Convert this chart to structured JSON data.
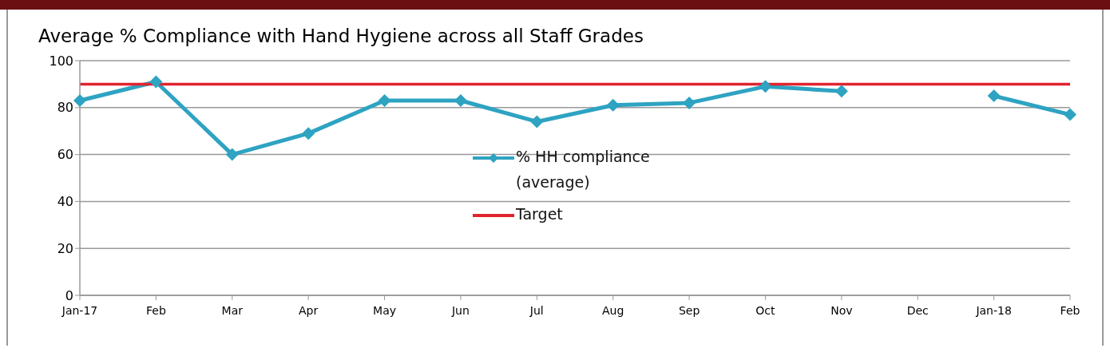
{
  "chart_data": {
    "type": "line",
    "title": "Average % Compliance with Hand Hygiene across all Staff Grades",
    "categories": [
      "Jan-17",
      "Feb",
      "Mar",
      "Apr",
      "May",
      "Jun",
      "Jul",
      "Aug",
      "Sep",
      "Oct",
      "Nov",
      "Dec",
      "Jan-18",
      "Feb"
    ],
    "series": [
      {
        "name": "% HH compliance (average)",
        "color": "#2ea3c2",
        "marker": "diamond",
        "values": [
          83,
          91,
          60,
          69,
          83,
          83,
          74,
          81,
          82,
          89,
          87,
          null,
          85,
          77
        ]
      },
      {
        "name": "Target",
        "color": "#e0242f",
        "marker": "none",
        "values": [
          90,
          90,
          90,
          90,
          90,
          90,
          90,
          90,
          90,
          90,
          90,
          90,
          90,
          90
        ]
      }
    ],
    "ylim": [
      0,
      100
    ],
    "yticks": [
      0,
      20,
      40,
      60,
      80,
      100
    ],
    "grid": "y",
    "legend": "center"
  }
}
